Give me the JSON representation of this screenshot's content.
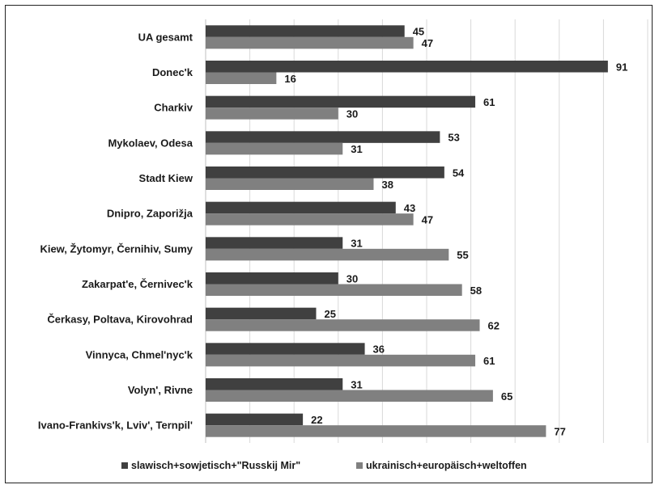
{
  "chart_data": {
    "type": "bar",
    "orientation": "horizontal",
    "categories": [
      "UA gesamt",
      "Donec'k",
      "Charkiv",
      "Mykolaev, Odesa",
      "Stadt Kiew",
      "Dnipro, Zaporižja",
      "Kiew, Žytomyr, Černihiv, Sumy",
      "Zakarpat'e, Černivec'k",
      "Čerkasy, Poltava, Kirovohrad",
      "Vinnyca, Chmel'nyc'k",
      "Volyn', Rivne",
      "Ivano-Frankivs'k, Lviv', Ternpil'"
    ],
    "series": [
      {
        "name": "slawisch+sowjetisch+\"Russkij Mir\"",
        "color": "#404040",
        "values": [
          45,
          91,
          61,
          53,
          54,
          43,
          31,
          30,
          25,
          36,
          31,
          22
        ]
      },
      {
        "name": "ukrainisch+europäisch+weltoffen",
        "color": "#808080",
        "values": [
          47,
          16,
          30,
          31,
          38,
          47,
          55,
          58,
          62,
          61,
          65,
          77
        ]
      }
    ],
    "xlim": [
      0,
      100
    ],
    "grid": true,
    "legend": "bottom"
  }
}
